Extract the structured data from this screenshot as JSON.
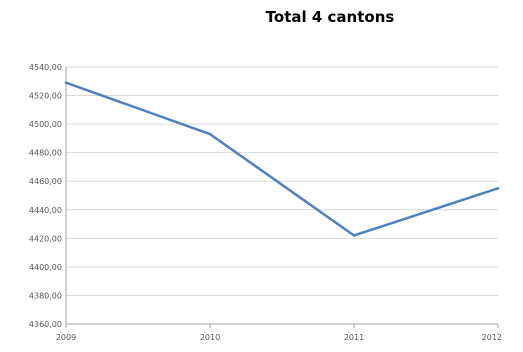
{
  "chart_data": {
    "type": "line",
    "title": "Total 4 cantons",
    "xlabel": "",
    "ylabel": "",
    "x": [
      "2009",
      "2010",
      "2011",
      "2012"
    ],
    "series": [
      {
        "values": [
          4529,
          4493,
          4422,
          4455
        ],
        "color": "#4f81bd"
      }
    ],
    "ylim": [
      4360,
      4540
    ],
    "ystep": 20,
    "y_tick_labels": [
      "4360,00",
      "4380,00",
      "4400,00",
      "4420,00",
      "4440,00",
      "4460,00",
      "4480,00",
      "4500,00",
      "4520,00",
      "4540,00"
    ],
    "grid": true,
    "gridline_color": "#d9d9d9",
    "legend": "none"
  }
}
